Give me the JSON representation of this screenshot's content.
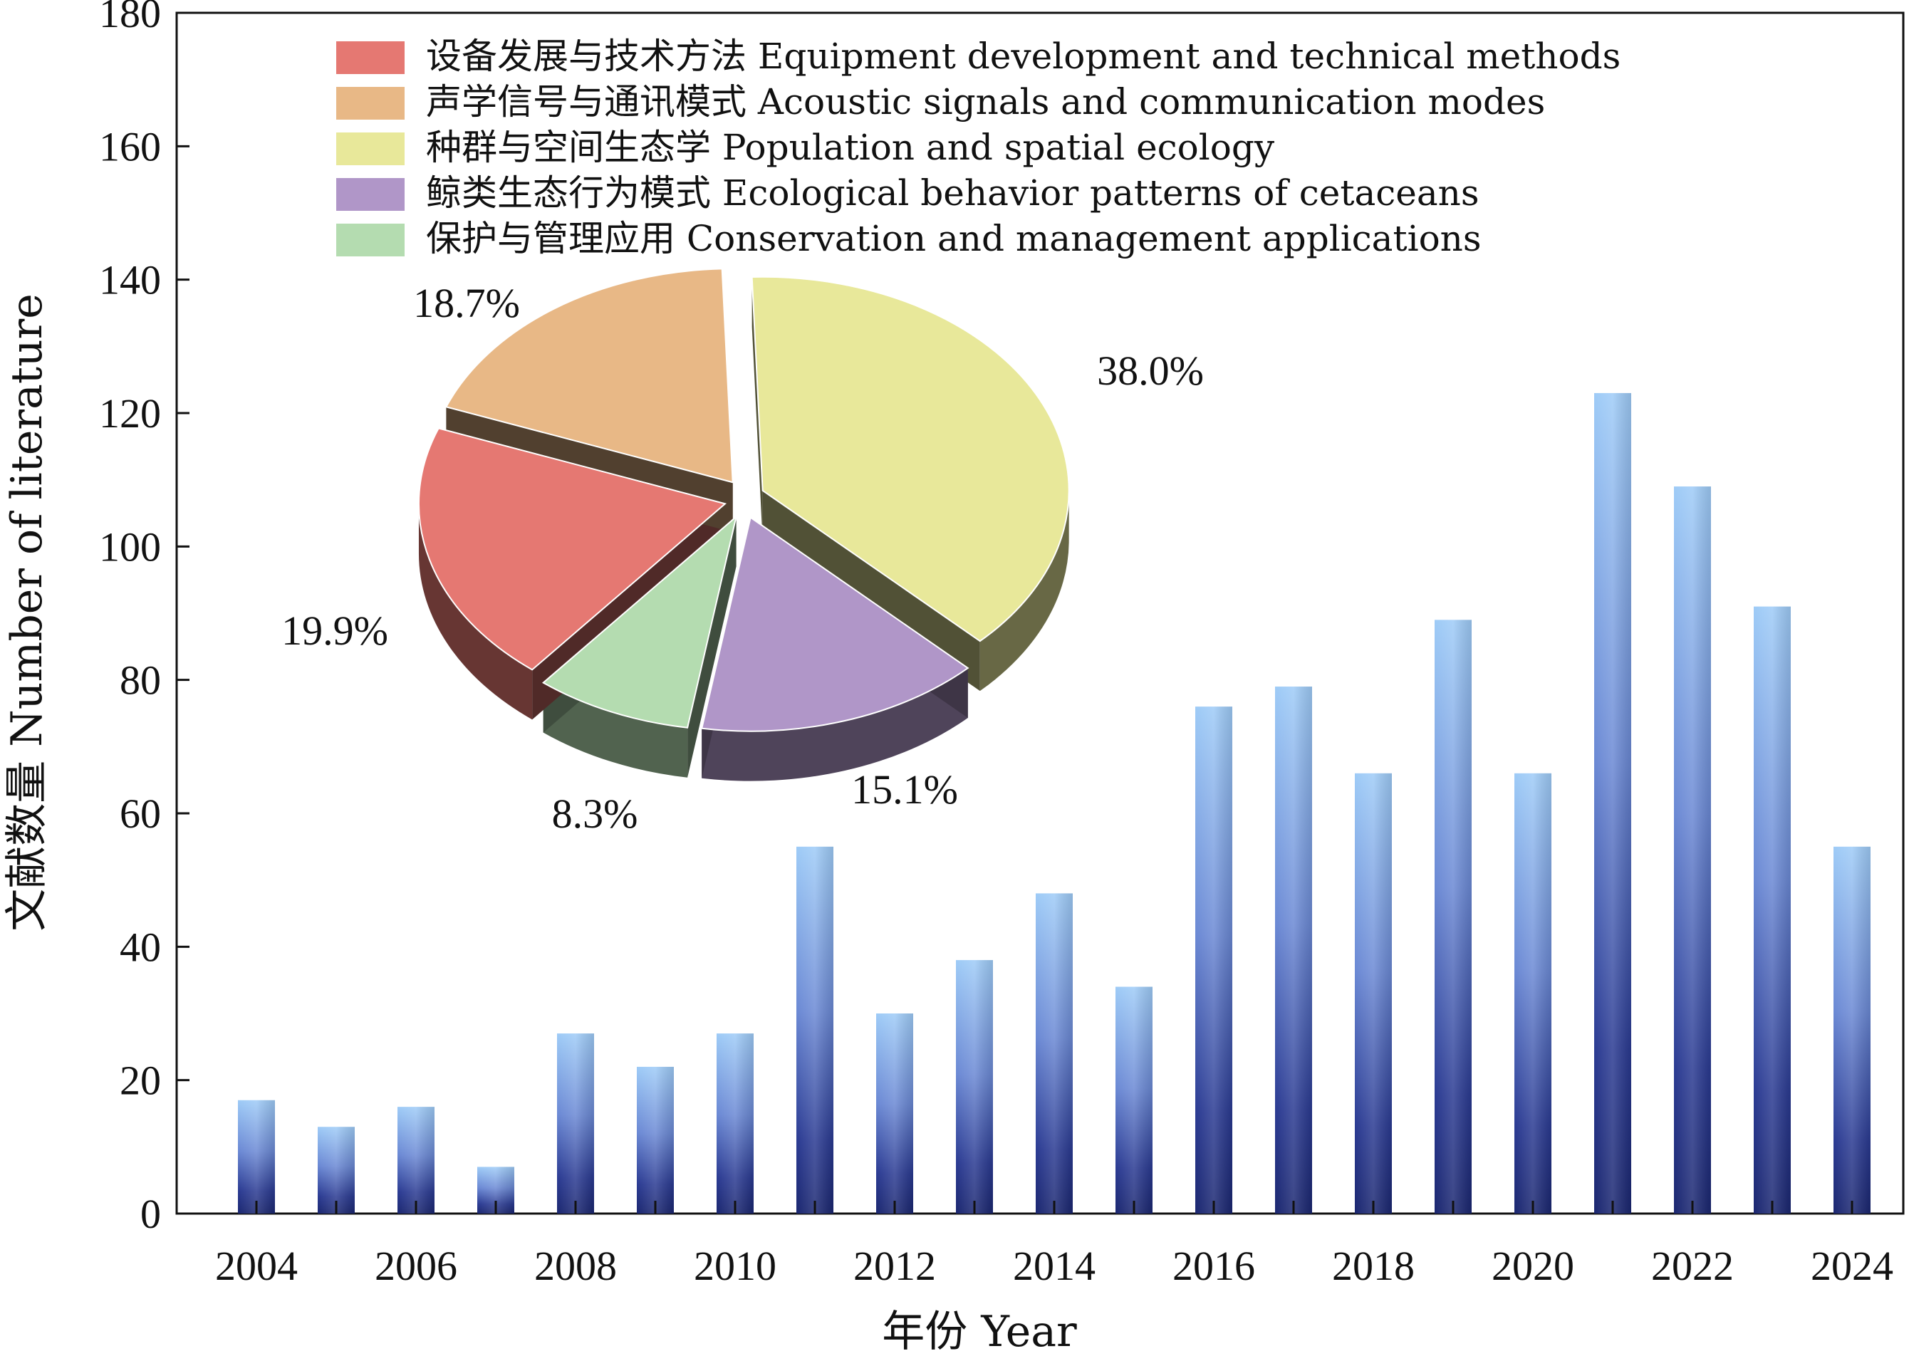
{
  "chart_data": [
    {
      "type": "bar",
      "categories": [
        "2004",
        "2005",
        "2006",
        "2007",
        "2008",
        "2009",
        "2010",
        "2011",
        "2012",
        "2013",
        "2014",
        "2015",
        "2016",
        "2017",
        "2018",
        "2019",
        "2020",
        "2021",
        "2022",
        "2023",
        "2024"
      ],
      "values": [
        17,
        13,
        16,
        7,
        27,
        22,
        27,
        55,
        30,
        38,
        48,
        34,
        76,
        79,
        66,
        89,
        66,
        123,
        109,
        91,
        55
      ],
      "xlabel": "年份 Year",
      "ylabel": "文献数量 Number of literature",
      "ylim": [
        0,
        180
      ],
      "yticks": [
        0,
        20,
        40,
        60,
        80,
        100,
        120,
        140,
        160,
        180
      ],
      "xtick_labels": [
        "2004",
        "2006",
        "2008",
        "2010",
        "2012",
        "2014",
        "2016",
        "2018",
        "2020",
        "2022",
        "2024"
      ],
      "grid": false,
      "bar_gradient": [
        "#9ecbf7",
        "#1a2a7a"
      ]
    },
    {
      "type": "pie",
      "style": "3d-exploded",
      "legend_position": "top",
      "slices": [
        {
          "label": "设备发展与技术方法 Equipment development and technical methods",
          "value": 19.9,
          "value_label": "19.9%",
          "color": "#e57872"
        },
        {
          "label": "声学信号与通讯模式 Acoustic signals and communication modes",
          "value": 18.7,
          "value_label": "18.7%",
          "color": "#e8b886"
        },
        {
          "label": "种群与空间生态学 Population and spatial ecology",
          "value": 38.0,
          "value_label": "38.0%",
          "color": "#e8e89a"
        },
        {
          "label": "鲸类生态行为模式 Ecological behavior patterns of cetaceans",
          "value": 15.1,
          "value_label": "15.1%",
          "color": "#b096c8"
        },
        {
          "label": "保护与管理应用 Conservation and management applications",
          "value": 8.3,
          "value_label": "8.3%",
          "color": "#b4dcb0"
        }
      ]
    }
  ]
}
